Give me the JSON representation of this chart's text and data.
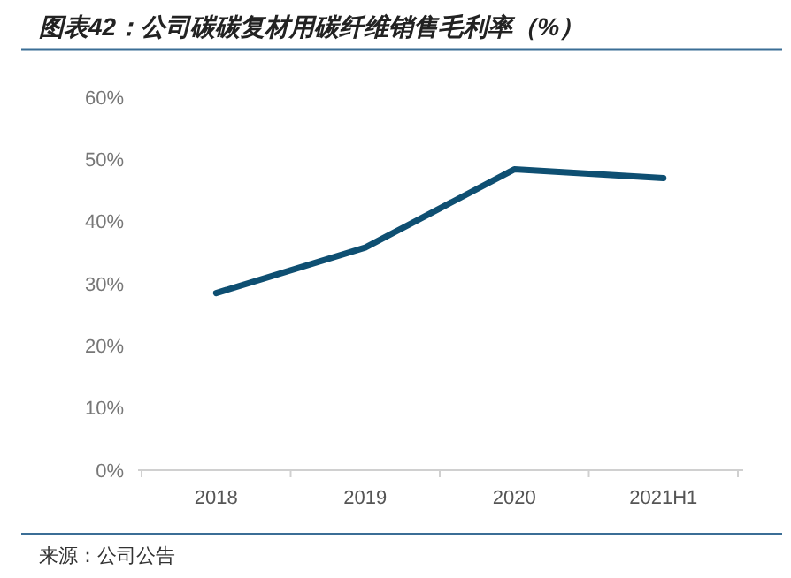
{
  "chart_data": {
    "type": "line",
    "title": "图表42：公司碳碳复材用碳纤维销售毛利率（%）",
    "annotations": [
      "来源：公司公告"
    ],
    "categories": [
      "2018",
      "2019",
      "2020",
      "2021H1"
    ],
    "series": [
      {
        "color": "#0e4f72",
        "values": [
          28.5,
          35.8,
          48.4,
          47.0
        ]
      }
    ],
    "ylim": [
      0,
      60
    ],
    "yticks": [
      {
        "value": 0,
        "label": "0%"
      },
      {
        "value": 10,
        "label": "10%"
      },
      {
        "value": 20,
        "label": "20%"
      },
      {
        "value": 30,
        "label": "30%"
      },
      {
        "value": 40,
        "label": "40%"
      },
      {
        "value": 50,
        "label": "50%"
      },
      {
        "value": 60,
        "label": "60%"
      }
    ],
    "marker": "none",
    "line_style": "solid"
  }
}
